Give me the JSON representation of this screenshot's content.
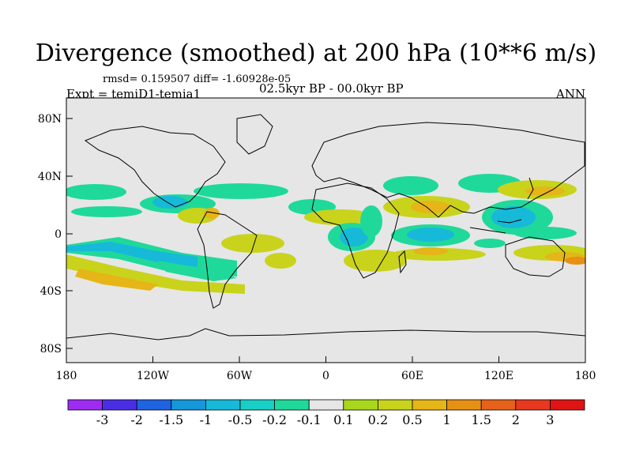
{
  "title": "Divergence (smoothed) at 200 hPa (10**6 m/s)",
  "stats": "rmsd= 0.159507 diff= -1.60928e-05",
  "experiment": "Expt = temiD1-temia1",
  "period": "02.5kyr BP - 00.0kyr BP",
  "season": "ANN",
  "map": {
    "background_color": "#e6e6e6",
    "lat_ticks": [
      "80N",
      "40N",
      "0",
      "40S",
      "80S"
    ],
    "lon_ticks": [
      "180",
      "120W",
      "60W",
      "0",
      "60E",
      "120E",
      "180"
    ]
  },
  "colorbar": {
    "colors": [
      "#9d2bf0",
      "#4a2ee6",
      "#1f63e0",
      "#1597d9",
      "#17b9d9",
      "#18cfc6",
      "#1fd99a",
      "#e6e6e6",
      "#a8d71c",
      "#c9d31c",
      "#e6b517",
      "#e69014",
      "#e6621a",
      "#e6391f",
      "#e01414"
    ],
    "labels": [
      "-3",
      "-2",
      "-1.5",
      "-1",
      "-0.5",
      "-0.2",
      "-0.1",
      "0.1",
      "0.2",
      "0.5",
      "1",
      "1.5",
      "2",
      "3"
    ]
  }
}
